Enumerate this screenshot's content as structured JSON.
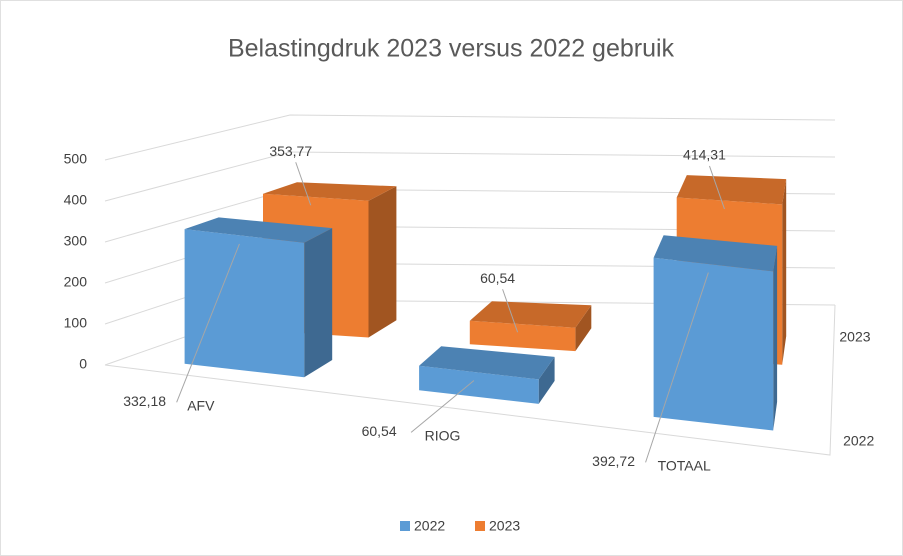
{
  "chart_data": {
    "type": "bar",
    "title": "Belastingdruk 2023 versus 2022 gebruik",
    "categories": [
      "AFV",
      "RIOG",
      "TOTAAL"
    ],
    "series": [
      {
        "name": "2022",
        "color": "#5b9bd5",
        "values": [
          332.18,
          60.54,
          392.72
        ],
        "value_labels": [
          "332,18",
          "60,54",
          "392,72"
        ]
      },
      {
        "name": "2023",
        "color": "#ed7d31",
        "values": [
          353.77,
          60.54,
          414.31
        ],
        "value_labels": [
          "353,77",
          "60,54",
          "414,31"
        ]
      }
    ],
    "ylim": [
      0,
      500
    ],
    "yticks": [
      0,
      100,
      200,
      300,
      400,
      500
    ],
    "grid": true,
    "legend": "bottom"
  }
}
